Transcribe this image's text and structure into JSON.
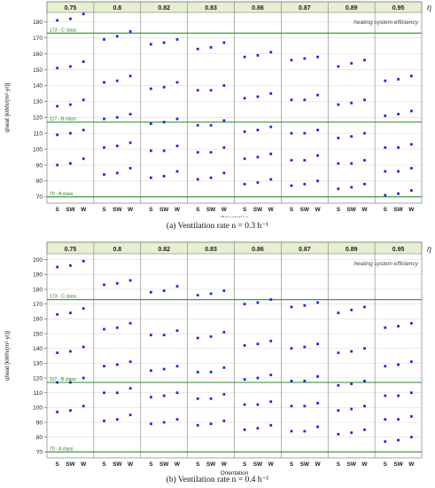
{
  "figure": {
    "caption_a": "(a) Ventilation rate n = 0.3 h⁻¹",
    "caption_b": "(b) Ventilation rate n = 0.4 h⁻¹",
    "legend_symbol": "η",
    "legend_text": "heating system efficiency"
  },
  "colors": {
    "header_bg": "#e6efd0",
    "class_line": "#2e8b2e",
    "class_label": "#1e7a1e",
    "marker": "#1f2bd9",
    "grid": "#d6d6d6",
    "panel_border": "#7f7f7f"
  },
  "chart_data": [
    {
      "type": "scatter",
      "ylabel": "qheat [kWh/(m²·yr)]",
      "xlabel": "Orientation",
      "ylim": [
        66,
        186
      ],
      "yticks": [
        70,
        80,
        90,
        100,
        110,
        120,
        130,
        140,
        150,
        160,
        170,
        180
      ],
      "categories": [
        "S",
        "SW",
        "W"
      ],
      "panels": [
        "0.75",
        "0.8",
        "0.82",
        "0.83",
        "0.86",
        "0.87",
        "0.89",
        "0.95"
      ],
      "class_lines": [
        {
          "label": "173 - C class",
          "value": 173
        },
        {
          "label": "117 - B class",
          "value": 117
        },
        {
          "label": "70 - A class",
          "value": 70
        }
      ],
      "series": [
        {
          "values": [
            [
              181,
              182,
              185
            ],
            [
              169,
              171,
              174
            ],
            [
              166,
              167,
              169
            ],
            [
              163,
              164,
              167
            ],
            [
              158,
              159,
              161
            ],
            [
              156,
              157,
              158
            ],
            [
              152,
              154,
              156
            ],
            [
              143,
              144,
              146
            ]
          ]
        },
        {
          "values": [
            [
              151,
              152,
              155
            ],
            [
              142,
              143,
              146
            ],
            [
              138,
              139,
              142
            ],
            [
              137,
              137,
              140
            ],
            [
              132,
              133,
              135
            ],
            [
              131,
              131,
              134
            ],
            [
              128,
              129,
              131
            ],
            [
              121,
              122,
              124
            ]
          ]
        },
        {
          "values": [
            [
              127,
              128,
              131
            ],
            [
              119,
              120,
              122
            ],
            [
              116,
              117,
              119
            ],
            [
              115,
              115,
              118
            ],
            [
              111,
              112,
              114
            ],
            [
              110,
              110,
              112
            ],
            [
              107,
              108,
              110
            ],
            [
              101,
              101,
              103
            ]
          ]
        },
        {
          "values": [
            [
              109,
              110,
              112
            ],
            [
              101,
              102,
              104
            ],
            [
              99,
              99,
              102
            ],
            [
              98,
              98,
              101
            ],
            [
              94,
              95,
              97
            ],
            [
              93,
              93,
              96
            ],
            [
              91,
              91,
              93
            ],
            [
              86,
              86,
              88
            ]
          ]
        },
        {
          "values": [
            [
              90,
              91,
              94
            ],
            [
              84,
              85,
              88
            ],
            [
              82,
              83,
              86
            ],
            [
              81,
              82,
              85
            ],
            [
              78,
              79,
              81
            ],
            [
              77,
              78,
              80
            ],
            [
              75,
              76,
              78
            ],
            [
              71,
              72,
              74
            ]
          ]
        }
      ]
    },
    {
      "type": "scatter",
      "ylabel": "qheat [kWh/(m²·yr)]",
      "xlabel": "Orientation",
      "ylim": [
        66,
        204
      ],
      "yticks": [
        70,
        80,
        90,
        100,
        110,
        120,
        130,
        140,
        150,
        160,
        170,
        180,
        190,
        200
      ],
      "categories": [
        "S",
        "SW",
        "W"
      ],
      "panels": [
        "0.75",
        "0.8",
        "0.82",
        "0.83",
        "0.86",
        "0.87",
        "0.89",
        "0.95"
      ],
      "class_lines": [
        {
          "label": "173 - C class",
          "value": 173
        },
        {
          "label": "117 - B class",
          "value": 117
        },
        {
          "label": "70 - A class",
          "value": 70
        }
      ],
      "series": [
        {
          "values": [
            [
              195,
              196,
              199
            ],
            [
              183,
              184,
              186
            ],
            [
              178,
              179,
              182
            ],
            [
              176,
              177,
              179
            ],
            [
              170,
              171,
              173
            ],
            [
              168,
              169,
              171
            ],
            [
              164,
              166,
              168
            ],
            [
              154,
              155,
              157
            ]
          ]
        },
        {
          "values": [
            [
              163,
              164,
              167
            ],
            [
              153,
              154,
              157
            ],
            [
              149,
              149,
              152
            ],
            [
              147,
              148,
              151
            ],
            [
              142,
              143,
              145
            ],
            [
              140,
              141,
              143
            ],
            [
              137,
              138,
              140
            ],
            [
              128,
              129,
              131
            ]
          ]
        },
        {
          "values": [
            [
              137,
              138,
              141
            ],
            [
              128,
              129,
              131
            ],
            [
              125,
              126,
              128
            ],
            [
              124,
              124,
              127
            ],
            [
              119,
              120,
              122
            ],
            [
              118,
              118,
              121
            ],
            [
              115,
              116,
              118
            ],
            [
              108,
              108,
              110
            ]
          ]
        },
        {
          "values": [
            [
              117,
              117,
              120
            ],
            [
              110,
              110,
              113
            ],
            [
              107,
              108,
              110
            ],
            [
              106,
              106,
              109
            ],
            [
              102,
              102,
              104
            ],
            [
              101,
              101,
              103
            ],
            [
              98,
              99,
              101
            ],
            [
              92,
              92,
              94
            ]
          ]
        },
        {
          "values": [
            [
              97,
              98,
              101
            ],
            [
              91,
              92,
              95
            ],
            [
              89,
              90,
              92
            ],
            [
              88,
              89,
              91
            ],
            [
              85,
              86,
              88
            ],
            [
              84,
              84,
              87
            ],
            [
              82,
              83,
              85
            ],
            [
              77,
              78,
              80
            ]
          ]
        }
      ]
    }
  ]
}
